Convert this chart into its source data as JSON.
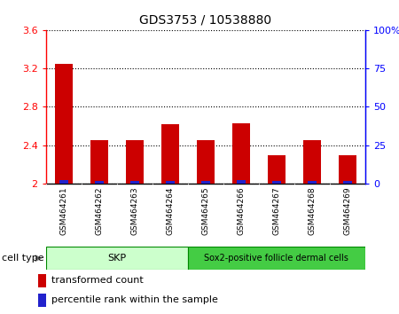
{
  "title": "GDS3753 / 10538880",
  "samples": [
    "GSM464261",
    "GSM464262",
    "GSM464263",
    "GSM464264",
    "GSM464265",
    "GSM464266",
    "GSM464267",
    "GSM464268",
    "GSM464269"
  ],
  "transformed_counts": [
    3.25,
    2.45,
    2.45,
    2.62,
    2.45,
    2.63,
    2.3,
    2.45,
    2.3
  ],
  "percentile_ranks_pct": [
    2.5,
    1.5,
    1.5,
    2.0,
    1.5,
    2.5,
    1.5,
    1.5,
    1.5
  ],
  "ylim_left": [
    2.0,
    3.6
  ],
  "ylim_right": [
    0,
    100
  ],
  "yticks_left": [
    2.0,
    2.4,
    2.8,
    3.2,
    3.6
  ],
  "ytick_labels_left": [
    "2",
    "2.4",
    "2.8",
    "3.2",
    "3.6"
  ],
  "yticks_right": [
    0,
    25,
    50,
    75,
    100
  ],
  "ytick_labels_right": [
    "0",
    "25",
    "50",
    "75",
    "100%"
  ],
  "bar_color_red": "#cc0000",
  "bar_color_blue": "#2222cc",
  "bar_width": 0.5,
  "blue_bar_width": 0.25,
  "skp_count": 4,
  "skp_label": "SKP",
  "skp_color": "#ccffcc",
  "sox2_label": "Sox2-positive follicle dermal cells",
  "sox2_color": "#44cc44",
  "cell_type_label": "cell type",
  "legend_red_label": "transformed count",
  "legend_blue_label": "percentile rank within the sample",
  "grid_color": "black",
  "xlabel_area_color": "#c8c8c8",
  "plot_bg_color": "#ffffff",
  "fig_bg_color": "#ffffff"
}
